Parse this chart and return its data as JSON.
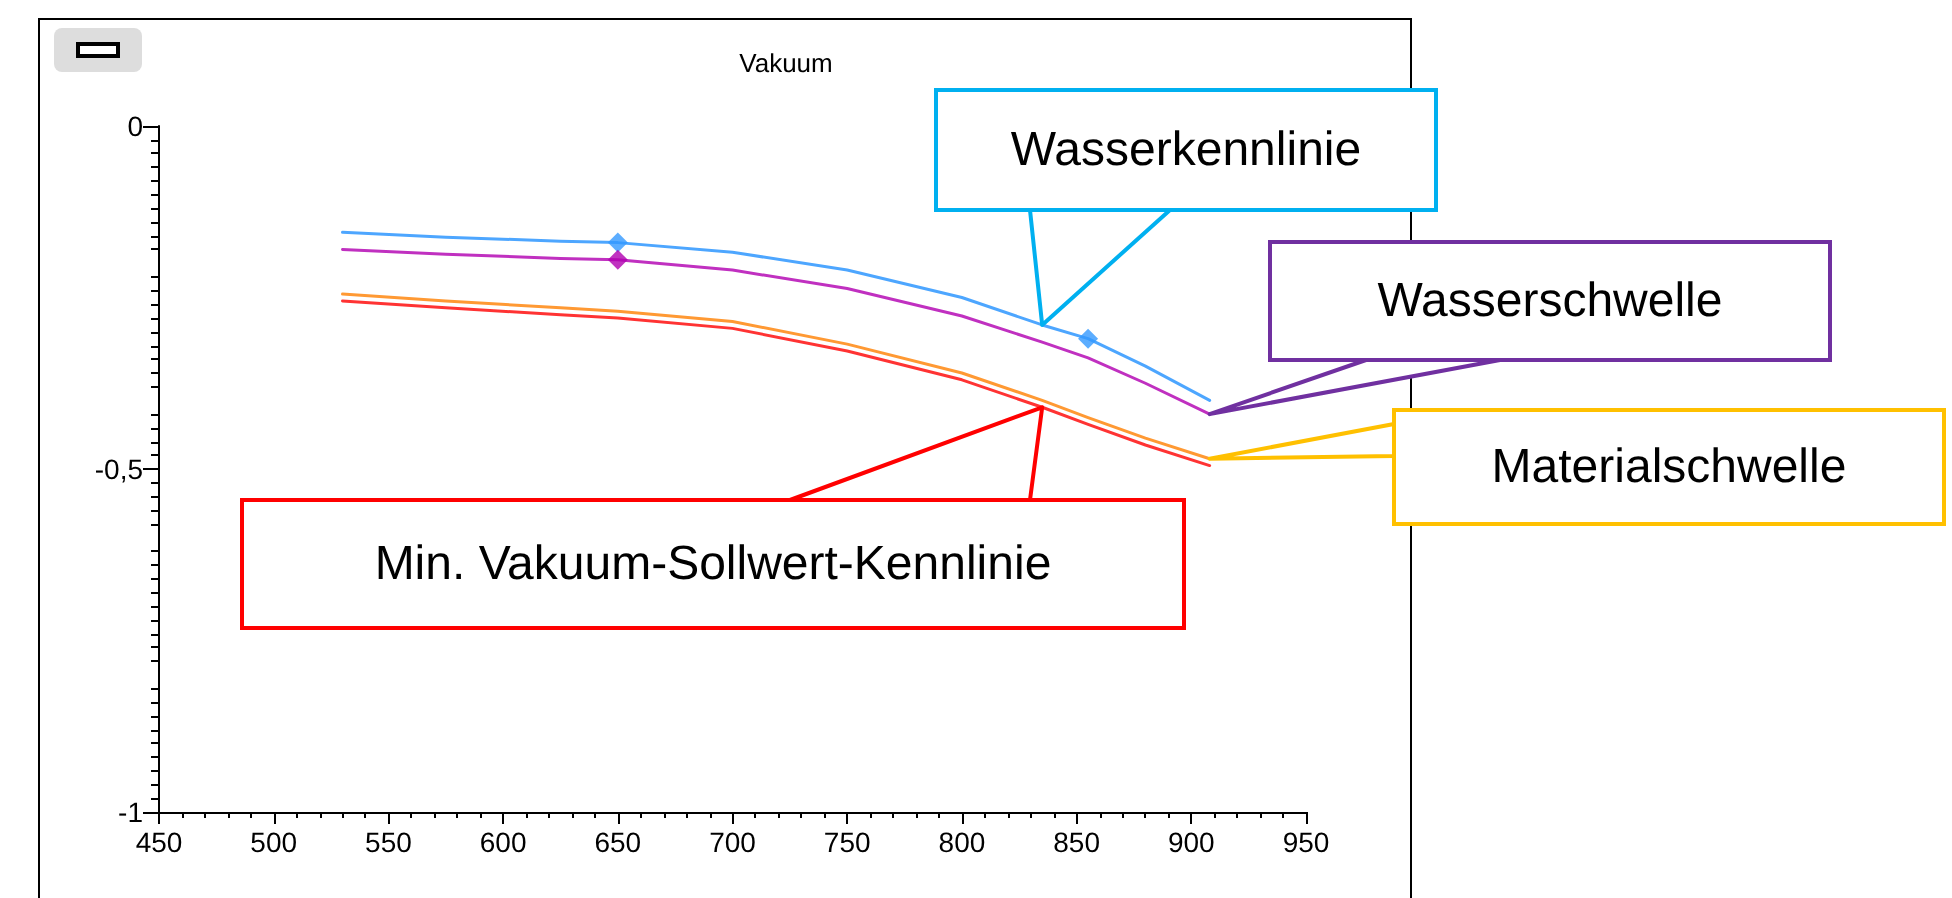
{
  "chart_data": {
    "type": "line",
    "title": "Vakuum",
    "xlim": [
      450,
      950
    ],
    "xticks": [
      450,
      500,
      550,
      600,
      650,
      700,
      750,
      800,
      850,
      900,
      950
    ],
    "ylim": [
      -1,
      0
    ],
    "yticks": [
      -1,
      {
        "value": -0.5,
        "label": "-0,5"
      },
      0
    ],
    "grid": false,
    "legend": false,
    "marker": "none",
    "line_style": "solid",
    "series": [
      {
        "name": "Wasserkennlinie",
        "color": "#4da6ff",
        "x": [
          530,
          575,
          625,
          650,
          700,
          750,
          800,
          835,
          855,
          880,
          908
        ],
        "values": [
          -0.155,
          -0.162,
          -0.168,
          -0.17,
          -0.184,
          -0.21,
          -0.25,
          -0.29,
          -0.31,
          -0.35,
          -0.4
        ]
      },
      {
        "name": "Wasserschwelle",
        "color": "#c030c0",
        "x": [
          530,
          575,
          625,
          650,
          700,
          750,
          800,
          835,
          855,
          880,
          908
        ],
        "values": [
          -0.18,
          -0.187,
          -0.193,
          -0.195,
          -0.21,
          -0.237,
          -0.277,
          -0.315,
          -0.338,
          -0.375,
          -0.42
        ]
      },
      {
        "name": "Materialschwelle",
        "color": "#ff9933",
        "x": [
          530,
          575,
          625,
          650,
          700,
          750,
          800,
          835,
          855,
          880,
          908
        ],
        "values": [
          -0.245,
          -0.255,
          -0.265,
          -0.27,
          -0.285,
          -0.318,
          -0.36,
          -0.4,
          -0.425,
          -0.455,
          -0.485
        ]
      },
      {
        "name": "Min. Vakuum-Sollwert-Kennlinie",
        "color": "#ff3333",
        "x": [
          530,
          575,
          625,
          650,
          700,
          750,
          800,
          835,
          855,
          880,
          908
        ],
        "values": [
          -0.255,
          -0.265,
          -0.275,
          -0.28,
          -0.295,
          -0.328,
          -0.37,
          -0.41,
          -0.435,
          -0.465,
          -0.495
        ]
      },
      {
        "type": "scatter",
        "marker": "diamond",
        "color": "#3399ff",
        "x": [
          650,
          855
        ],
        "values": [
          -0.17,
          -0.31
        ]
      },
      {
        "type": "scatter",
        "marker": "diamond",
        "color": "#b000b0",
        "x": [
          650
        ],
        "values": [
          -0.195
        ]
      }
    ]
  }
}
